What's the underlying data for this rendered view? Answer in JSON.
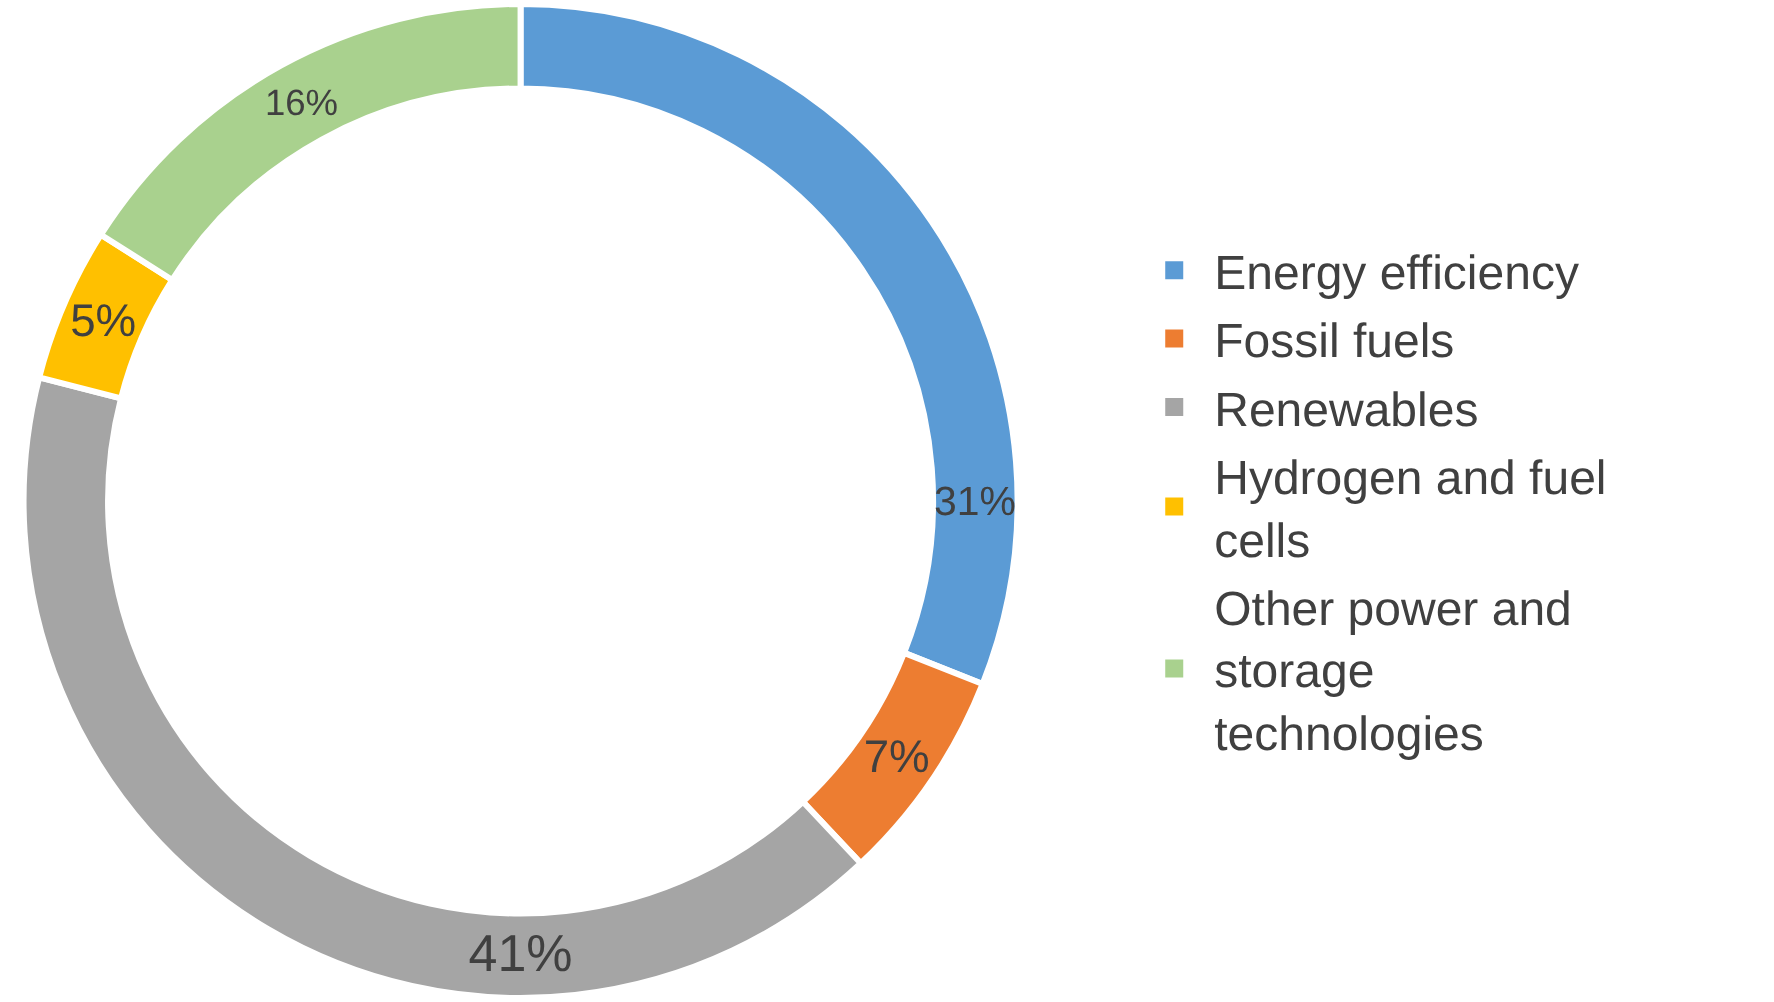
{
  "chart_data": {
    "type": "donut",
    "categories": [
      "Energy efficiency",
      "Fossil fuels",
      "Renewables",
      "Hydrogen and fuel cells",
      "Other power and storage technologies"
    ],
    "values": [
      31,
      7,
      41,
      5,
      16
    ],
    "value_labels": [
      "31%",
      "7%",
      "41%",
      "5%",
      "16%"
    ],
    "colors": [
      "#5b9bd5",
      "#ed7d31",
      "#a5a5a5",
      "#ffc000",
      "#a9d18e"
    ],
    "legend": "right"
  }
}
